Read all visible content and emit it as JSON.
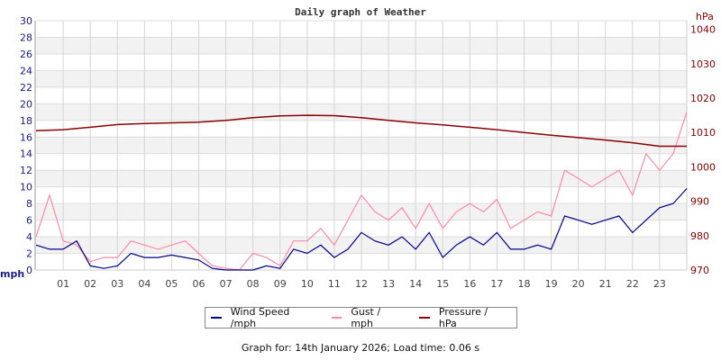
{
  "chart_data": {
    "type": "line",
    "title": "Daily graph of Weather",
    "ylabel": "mph",
    "y2label": "hPa",
    "ylim": [
      0,
      30
    ],
    "y2lim": [
      970,
      1042.5
    ],
    "yticks": [
      "0",
      "2",
      "4",
      "6",
      "8",
      "10",
      "12",
      "14",
      "16",
      "18",
      "20",
      "22",
      "24",
      "26",
      "28",
      "30"
    ],
    "y2ticks": [
      "970",
      "980",
      "990",
      "1000",
      "1010",
      "1020",
      "1030",
      "1040"
    ],
    "xticks": [
      "01",
      "02",
      "03",
      "04",
      "05",
      "06",
      "07",
      "08",
      "09",
      "10",
      "11",
      "12",
      "13",
      "14",
      "15",
      "16",
      "17",
      "18",
      "19",
      "20",
      "21",
      "22",
      "23"
    ],
    "xlim": [
      0,
      24
    ],
    "grid": true,
    "legend_placement": "bottom",
    "series": [
      {
        "name": "Wind Speed /mph",
        "color": "#00008b",
        "axis": "left",
        "x": [
          0,
          0.5,
          1,
          1.5,
          2,
          2.5,
          3,
          3.5,
          4,
          4.5,
          5,
          5.5,
          6,
          6.5,
          7,
          7.5,
          8,
          8.5,
          9,
          9.5,
          10,
          10.5,
          11,
          11.5,
          12,
          12.5,
          13,
          13.5,
          14,
          14.5,
          15,
          15.5,
          16,
          16.5,
          17,
          17.5,
          18,
          18.5,
          19,
          19.5,
          20,
          20.5,
          21,
          21.5,
          22,
          22.5,
          23,
          23.5,
          24
        ],
        "values": [
          3,
          2.5,
          2.5,
          3.5,
          0.5,
          0.2,
          0.5,
          2,
          1.5,
          1.5,
          1.8,
          1.5,
          1.2,
          0.2,
          0,
          0,
          0,
          0.5,
          0.2,
          2.5,
          2,
          3,
          1.5,
          2.5,
          4.5,
          3.5,
          3,
          4,
          2.5,
          4.5,
          1.5,
          3,
          4,
          3,
          4.5,
          2.5,
          2.5,
          3,
          2.5,
          6.5,
          6,
          5.5,
          6,
          6.5,
          4.5,
          6,
          7.5,
          8,
          9.8
        ]
      },
      {
        "name": "Gust / mph",
        "color": "#ff88aa",
        "axis": "left",
        "x": [
          0,
          0.5,
          1,
          1.5,
          2,
          2.5,
          3,
          3.5,
          4,
          4.5,
          5,
          5.5,
          6,
          6.5,
          7,
          7.5,
          8,
          8.5,
          9,
          9.5,
          10,
          10.5,
          11,
          11.5,
          12,
          12.5,
          13,
          13.5,
          14,
          14.5,
          15,
          15.5,
          16,
          16.5,
          17,
          17.5,
          18,
          18.5,
          19,
          19.5,
          20,
          20.5,
          21,
          21.5,
          22,
          22.5,
          23,
          23.5,
          24
        ],
        "values": [
          4,
          9,
          3.5,
          3,
          1,
          1.5,
          1.5,
          3.5,
          3,
          2.5,
          3,
          3.5,
          2,
          0.5,
          0.2,
          0,
          2,
          1.5,
          0.5,
          3.5,
          3.5,
          5,
          3,
          6,
          9,
          7,
          6,
          7.5,
          5,
          8,
          5,
          7,
          8,
          7,
          8.5,
          5,
          6,
          7,
          6.5,
          12,
          11,
          10,
          11,
          12,
          9,
          14,
          12,
          14,
          19
        ]
      },
      {
        "name": "Pressure / hPa",
        "color": "#8b0000",
        "axis": "right",
        "x": [
          0,
          1,
          2,
          3,
          4,
          5,
          6,
          7,
          8,
          9,
          10,
          11,
          12,
          13,
          14,
          15,
          16,
          17,
          18,
          19,
          20,
          21,
          22,
          23,
          24
        ],
        "values": [
          1010.5,
          1010.8,
          1011.5,
          1012.3,
          1012.6,
          1012.8,
          1013,
          1013.5,
          1014.3,
          1014.8,
          1015,
          1014.9,
          1014.3,
          1013.5,
          1012.8,
          1012.2,
          1011.5,
          1010.8,
          1010,
          1009.2,
          1008.5,
          1007.8,
          1007,
          1006,
          1006
        ]
      }
    ]
  },
  "legend": {
    "items": [
      "Wind Speed /mph",
      "Gust / mph",
      "Pressure / hPa"
    ]
  },
  "footer": "Graph for: 14th January 2026; Load time: 0.06 s"
}
